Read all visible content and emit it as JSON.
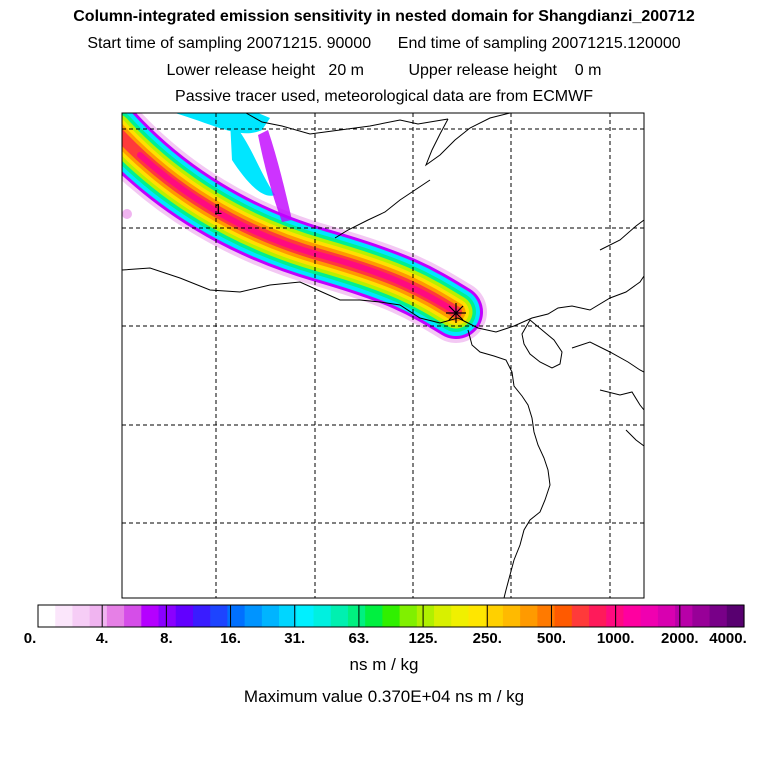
{
  "title": "Column-integrated emission sensitivity in nested domain for Shangdianzi_200712",
  "start_label": "Start time of sampling",
  "start_value": "20071215. 90000",
  "end_label": "End time of sampling",
  "end_value": "20071215.120000",
  "lower_label": "Lower release height",
  "lower_value": "20 m",
  "upper_label": "Upper release height",
  "upper_value": "0 m",
  "tracer_note": "Passive tracer used, meteorological data are from ECMWF",
  "contour_label": "1",
  "colorbar": {
    "tick_labels": [
      "0.",
      "4.",
      "8.",
      "16.",
      "31.",
      "63.",
      "125.",
      "250.",
      "500.",
      "1000.",
      "2000.",
      "4000."
    ],
    "colors": [
      "#ffffff",
      "#fbe6fb",
      "#f6cdf6",
      "#f0b4f0",
      "#e680e6",
      "#d54ee8",
      "#b500ff",
      "#8a00ff",
      "#6200ff",
      "#3a1cff",
      "#1d44ff",
      "#0070ff",
      "#0094ff",
      "#00b4ff",
      "#00d6ff",
      "#00f0ff",
      "#00f0e0",
      "#00f0b0",
      "#00f080",
      "#00f040",
      "#30f000",
      "#80f000",
      "#b0f000",
      "#d8f000",
      "#f0f000",
      "#ffe600",
      "#ffd000",
      "#ffba00",
      "#ff9a00",
      "#ff7a00",
      "#ff5a00",
      "#ff3a3a",
      "#ff1a5a",
      "#ff0a80",
      "#ff00a0",
      "#f000b0",
      "#d800b0",
      "#b800a8",
      "#980098",
      "#780088",
      "#580070"
    ],
    "unit": "ns m / kg"
  },
  "max_label": "Maximum value",
  "max_value": "0.370E+04 ns m / kg"
}
